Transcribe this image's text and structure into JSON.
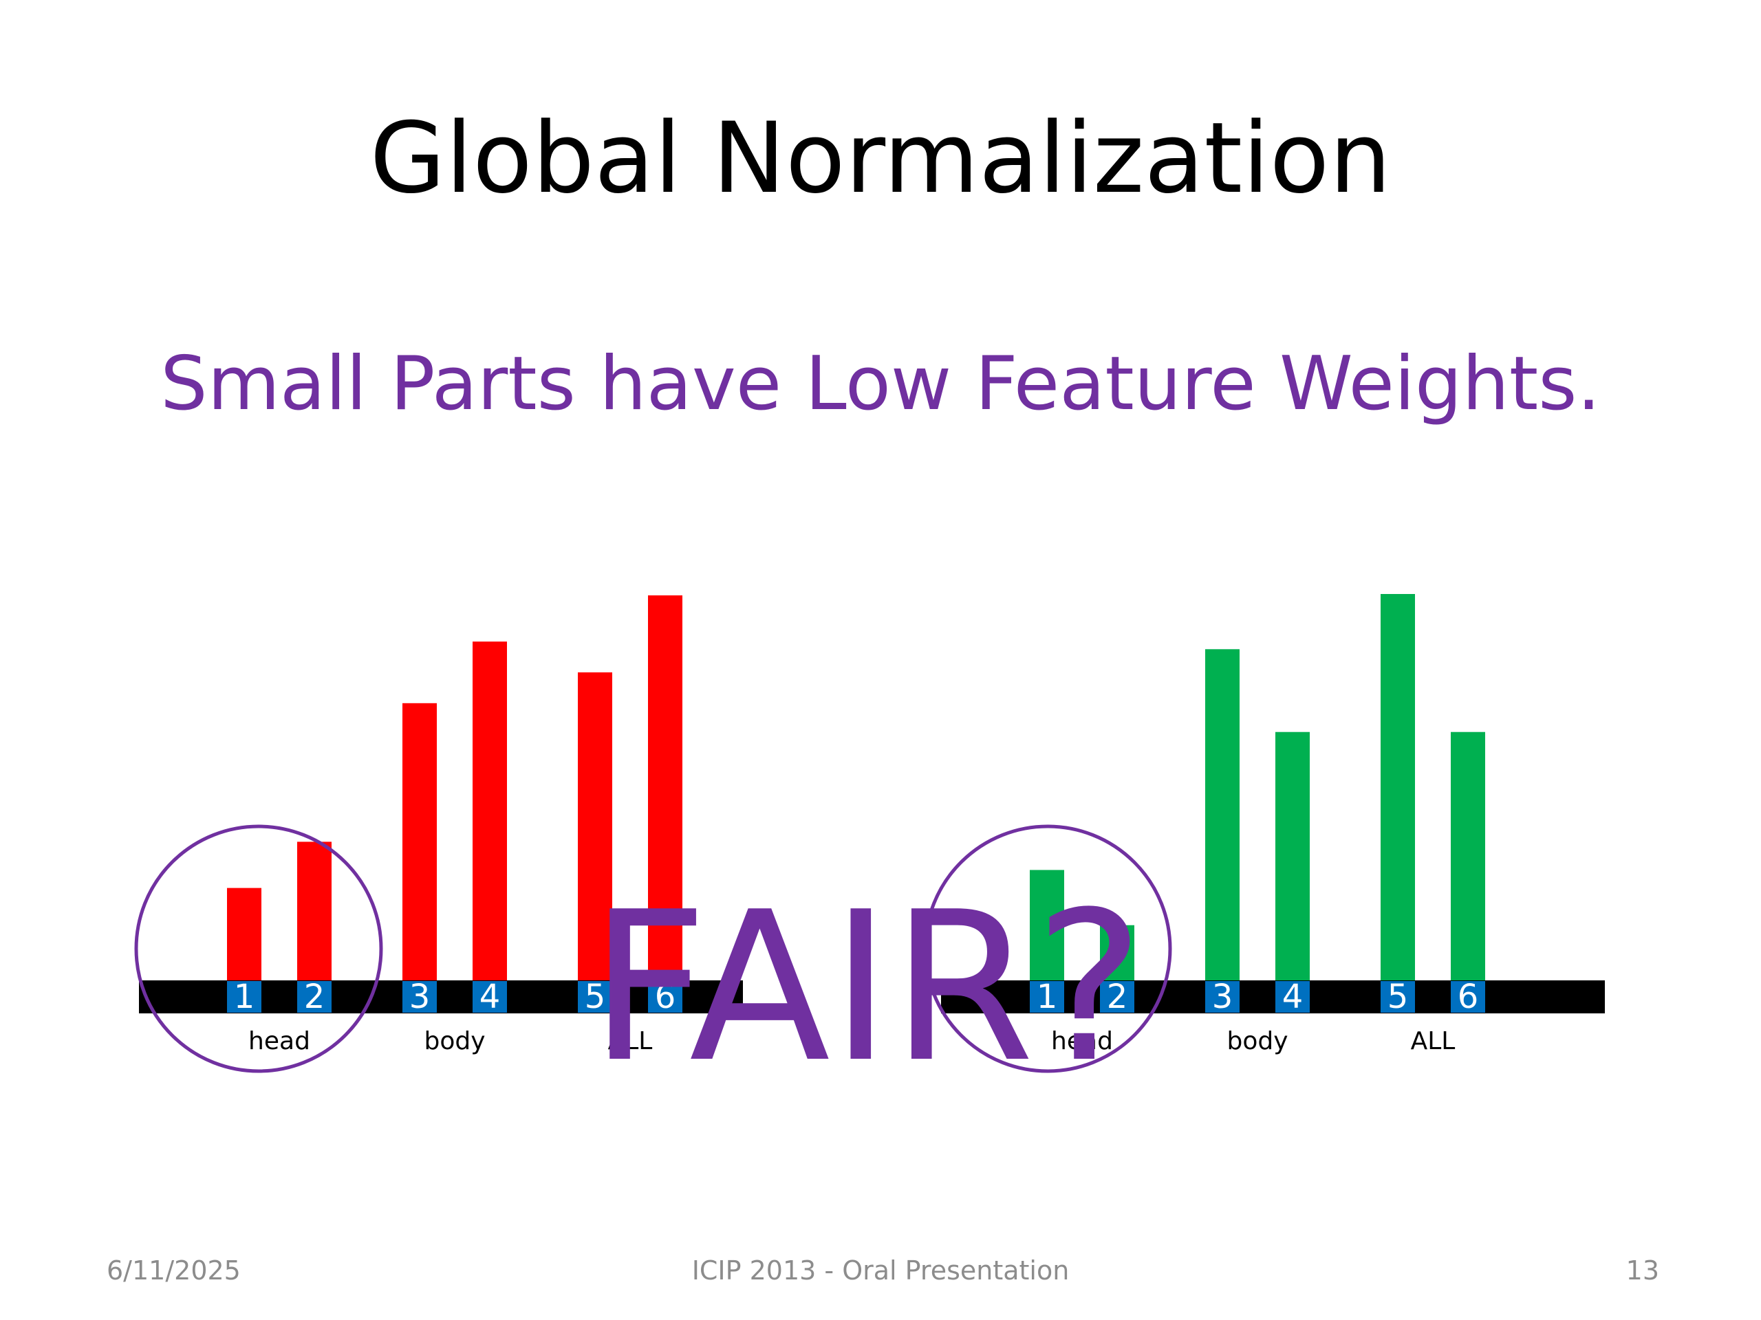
{
  "slide": {
    "title": "Global Normalization",
    "subtitle": "Small Parts have Low Feature Weights.",
    "overlay_text": "FAIR?",
    "accent_color": "#7030a0",
    "footer": {
      "date": "6/11/2025",
      "center": "ICIP 2013 - Oral Presentation",
      "page": "13"
    }
  },
  "chart_data": [
    {
      "type": "bar",
      "categories": [
        "1",
        "2",
        "3",
        "4",
        "5",
        "6"
      ],
      "groups": [
        {
          "label": "head",
          "categories": [
            "1",
            "2"
          ]
        },
        {
          "label": "body",
          "categories": [
            "3",
            "4"
          ]
        },
        {
          "label": "ALL",
          "categories": [
            "5",
            "6"
          ]
        }
      ],
      "series": [
        {
          "values": [
            1.2,
            1.8,
            3.6,
            4.4,
            4.0,
            5.0
          ],
          "color": "#ff0000"
        }
      ],
      "highlight_group": "head",
      "ylim": [
        0,
        5.5
      ],
      "grid": false,
      "axes_visible": false
    },
    {
      "type": "bar",
      "categories": [
        "1",
        "2",
        "3",
        "4",
        "5",
        "6"
      ],
      "groups": [
        {
          "label": "head",
          "categories": [
            "1",
            "2"
          ]
        },
        {
          "label": "body",
          "categories": [
            "3",
            "4"
          ]
        },
        {
          "label": "ALL",
          "categories": [
            "5",
            "6"
          ]
        }
      ],
      "series": [
        {
          "values": [
            1.6,
            0.8,
            4.8,
            3.6,
            5.6,
            3.6
          ],
          "color": "#00b050"
        }
      ],
      "highlight_group": "head",
      "ylim": [
        0,
        5.6
      ],
      "grid": false,
      "axes_visible": false
    }
  ]
}
